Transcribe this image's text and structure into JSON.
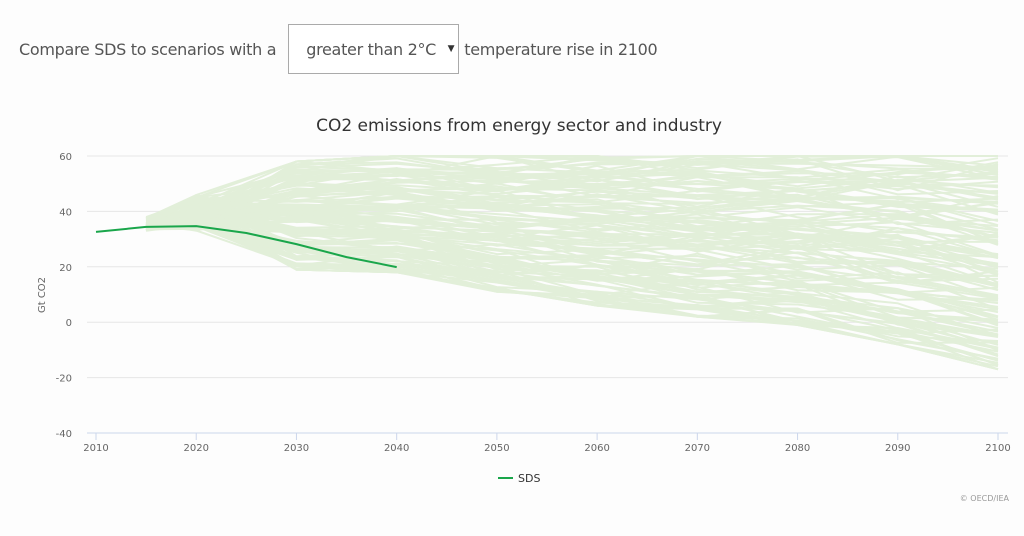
{
  "controls": {
    "prefix": "Compare SDS to scenarios with a",
    "selected_option": "greater than 2°C",
    "suffix": "temperature rise in 2100"
  },
  "colors": {
    "sds": "#1aa64b",
    "scenarios": "#e2efd9",
    "grid": "#e6e6e6",
    "axis": "#ccd6eb"
  },
  "credit": "© OECD/IEA",
  "chart_data": {
    "type": "line",
    "title": "CO2 emissions from energy sector and industry",
    "xlabel": "",
    "ylabel": "Gt CO2",
    "xlim": [
      2010,
      2100
    ],
    "ylim": [
      -40,
      60
    ],
    "x_ticks": [
      2010,
      2020,
      2030,
      2040,
      2050,
      2060,
      2070,
      2080,
      2090,
      2100
    ],
    "y_ticks": [
      -40,
      -20,
      0,
      20,
      40,
      60
    ],
    "grid": true,
    "legend": {
      "position": "bottom-center",
      "entries": [
        "SDS"
      ]
    },
    "series": [
      {
        "name": "SDS",
        "highlight": true,
        "x": [
          2010,
          2015,
          2020,
          2025,
          2030,
          2035,
          2040
        ],
        "y": [
          32.6,
          34.4,
          34.7,
          32.2,
          28.2,
          23.5,
          19.9
        ]
      }
    ],
    "scenario_ensemble": {
      "description": "Many scenarios with greater than 2°C temperature rise in 2100 (light green, unlabeled)",
      "x": [
        2015,
        2020,
        2030,
        2040,
        2050,
        2060,
        2070,
        2080,
        2090,
        2100
      ],
      "envelope_upper": [
        38,
        46,
        58,
        60,
        60,
        60,
        60,
        60,
        60,
        60
      ],
      "envelope_lower": [
        33,
        33,
        19,
        18,
        11,
        6,
        2,
        -1,
        -8,
        -17
      ],
      "sample_endpoints_2100": [
        59,
        55,
        52,
        48,
        45,
        42,
        38,
        35,
        32,
        28,
        25,
        22,
        18,
        15,
        12,
        8,
        5,
        2,
        0,
        -3,
        -6,
        -9,
        -11,
        -13,
        -17
      ]
    }
  }
}
